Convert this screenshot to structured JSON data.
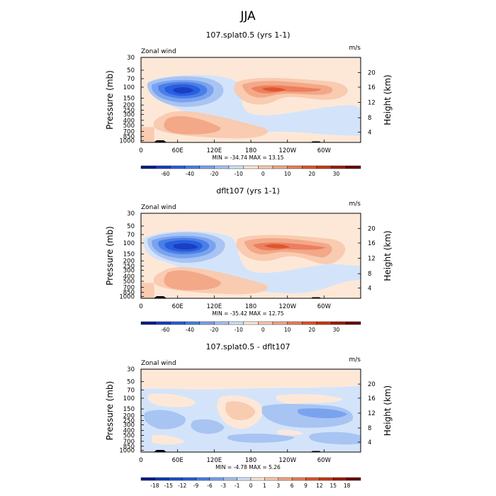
{
  "figure_title": "JJA",
  "chart_data": [
    {
      "type": "contour",
      "title": "107.splat0.5 (yrs 1-1)",
      "variable_label": "Zonal wind",
      "units": "m/s",
      "ylabel": "Pressure (mb)",
      "ylabel_right": "Height (km)",
      "pressure_ticks": [
        "30",
        "50",
        "70",
        "100",
        "150",
        "200",
        "250",
        "300",
        "400",
        "500",
        "700",
        "850",
        "1000"
      ],
      "height_ticks": [
        "20",
        "16",
        "12",
        "8",
        "4"
      ],
      "lon_ticks": [
        "0",
        "60E",
        "120E",
        "180",
        "120W",
        "60W"
      ],
      "stats": "MIN = -34.74   MAX =  13.15",
      "min": -34.74,
      "max": 13.15,
      "colorbar_labels": [
        "-60",
        "-40",
        "-20",
        "-10",
        "0",
        "10",
        "20",
        "30"
      ],
      "colors": [
        "#0a1f8a",
        "#1a3fc0",
        "#2a5ee0",
        "#4a7fe8",
        "#7aa3ef",
        "#a8c4f3",
        "#d3e4fa",
        "#fde8d8",
        "#f9cbb0",
        "#f3a888",
        "#ec7f5e",
        "#e05530",
        "#c93a18",
        "#9e1d0a",
        "#6b0a04"
      ],
      "fields": [
        {
          "lon": 75,
          "p": 150,
          "value": -34.74
        },
        {
          "lon": 210,
          "p": 150,
          "value": 13.15
        },
        {
          "lon": 40,
          "p": 550,
          "value": 6
        },
        {
          "lon": 110,
          "p": 600,
          "value": 3
        }
      ]
    },
    {
      "type": "contour",
      "title": "dflt107 (yrs 1-1)",
      "variable_label": "Zonal wind",
      "units": "m/s",
      "ylabel": "Pressure (mb)",
      "ylabel_right": "Height (km)",
      "pressure_ticks": [
        "30",
        "50",
        "70",
        "100",
        "150",
        "200",
        "250",
        "300",
        "400",
        "500",
        "700",
        "850",
        "1000"
      ],
      "height_ticks": [
        "20",
        "16",
        "12",
        "8",
        "4"
      ],
      "lon_ticks": [
        "0",
        "60E",
        "120E",
        "180",
        "120W",
        "60W"
      ],
      "stats": "MIN = -35.42   MAX =  12.75",
      "min": -35.42,
      "max": 12.75,
      "colorbar_labels": [
        "-60",
        "-40",
        "-20",
        "-10",
        "0",
        "10",
        "20",
        "30"
      ],
      "colors": [
        "#0a1f8a",
        "#1a3fc0",
        "#2a5ee0",
        "#4a7fe8",
        "#7aa3ef",
        "#a8c4f3",
        "#d3e4fa",
        "#fde8d8",
        "#f9cbb0",
        "#f3a888",
        "#ec7f5e",
        "#e05530",
        "#c93a18",
        "#9e1d0a",
        "#6b0a04"
      ],
      "fields": [
        {
          "lon": 75,
          "p": 160,
          "value": -35.42
        },
        {
          "lon": 215,
          "p": 180,
          "value": 12.75
        },
        {
          "lon": 40,
          "p": 550,
          "value": 6
        },
        {
          "lon": 110,
          "p": 600,
          "value": 3
        }
      ]
    },
    {
      "type": "contour",
      "title": "107.splat0.5 - dflt107",
      "variable_label": "Zonal wind",
      "units": "m/s",
      "ylabel": "Pressure (mb)",
      "ylabel_right": "Height (km)",
      "pressure_ticks": [
        "30",
        "50",
        "70",
        "100",
        "150",
        "200",
        "250",
        "300",
        "400",
        "500",
        "700",
        "850",
        "1000"
      ],
      "height_ticks": [
        "20",
        "16",
        "12",
        "8",
        "4"
      ],
      "lon_ticks": [
        "0",
        "60E",
        "120E",
        "180",
        "120W",
        "60W"
      ],
      "stats": "MIN = -4.78   MAX =  5.26",
      "min": -4.78,
      "max": 5.26,
      "colorbar_labels": [
        "-18",
        "-15",
        "-12",
        "-9",
        "-6",
        "-3",
        "-1",
        "0",
        "1",
        "3",
        "6",
        "9",
        "12",
        "15",
        "18"
      ],
      "colors": [
        "#0a1f8a",
        "#143ab5",
        "#1f50d2",
        "#2a5ee0",
        "#4a7fe8",
        "#7aa3ef",
        "#a8c4f3",
        "#d3e4fa",
        "#fde8d8",
        "#f9cbb0",
        "#f3a888",
        "#ec7f5e",
        "#e05530",
        "#c93a18",
        "#9e1d0a",
        "#6b0a04"
      ],
      "fields": [
        {
          "lon": 150,
          "p": 250,
          "value": 5.26
        },
        {
          "lon": 250,
          "p": 300,
          "value": -4.78
        }
      ]
    }
  ]
}
